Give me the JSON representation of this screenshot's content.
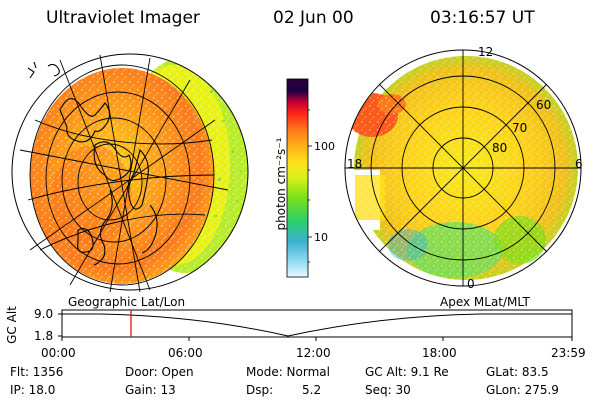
{
  "header": {
    "instrument": "Ultraviolet Imager",
    "date": "02 Jun 00",
    "time": "03:16:57 UT"
  },
  "colorbar": {
    "unit_label": "photon cm⁻²s⁻¹",
    "ticks": [
      "100",
      "10"
    ],
    "scale": "log",
    "colors": [
      "#2a0033",
      "#1c0044",
      "#cc0033",
      "#ff2a1a",
      "#ff7a1a",
      "#ffb21a",
      "#ffe01a",
      "#d8f01a",
      "#7ae01a",
      "#2ad06a",
      "#3ab0d0",
      "#8fdcf0",
      "#eaf6ff"
    ]
  },
  "left_panel": {
    "label": "Geographic Lat/Lon"
  },
  "right_panel": {
    "label": "Apex MLat/MLT",
    "lat_labels": [
      "60",
      "70",
      "80"
    ],
    "mlt_labels": {
      "top": "12",
      "left": "18",
      "right": "6",
      "bottom": "0"
    }
  },
  "timeline": {
    "ylabel": "GC Alt",
    "y_ticks": [
      "9.0",
      "1.8"
    ],
    "x_ticks": [
      "00:00",
      "06:00",
      "12:00",
      "18:00",
      "23:59"
    ],
    "marker_time": "03:16:57"
  },
  "status": {
    "row1": [
      "Flt:  1356",
      "Door:  Open",
      "Mode:  Normal",
      "GC Alt:  9.1 Re",
      "GLat:  83.5"
    ],
    "row2": [
      "IP:  18.0",
      "Gain:  13",
      "Dsp:",
      "Seq:  30",
      "GLon:  275.9"
    ],
    "dsp_value": "5.2"
  },
  "accent_marker_color": "#dd0000"
}
